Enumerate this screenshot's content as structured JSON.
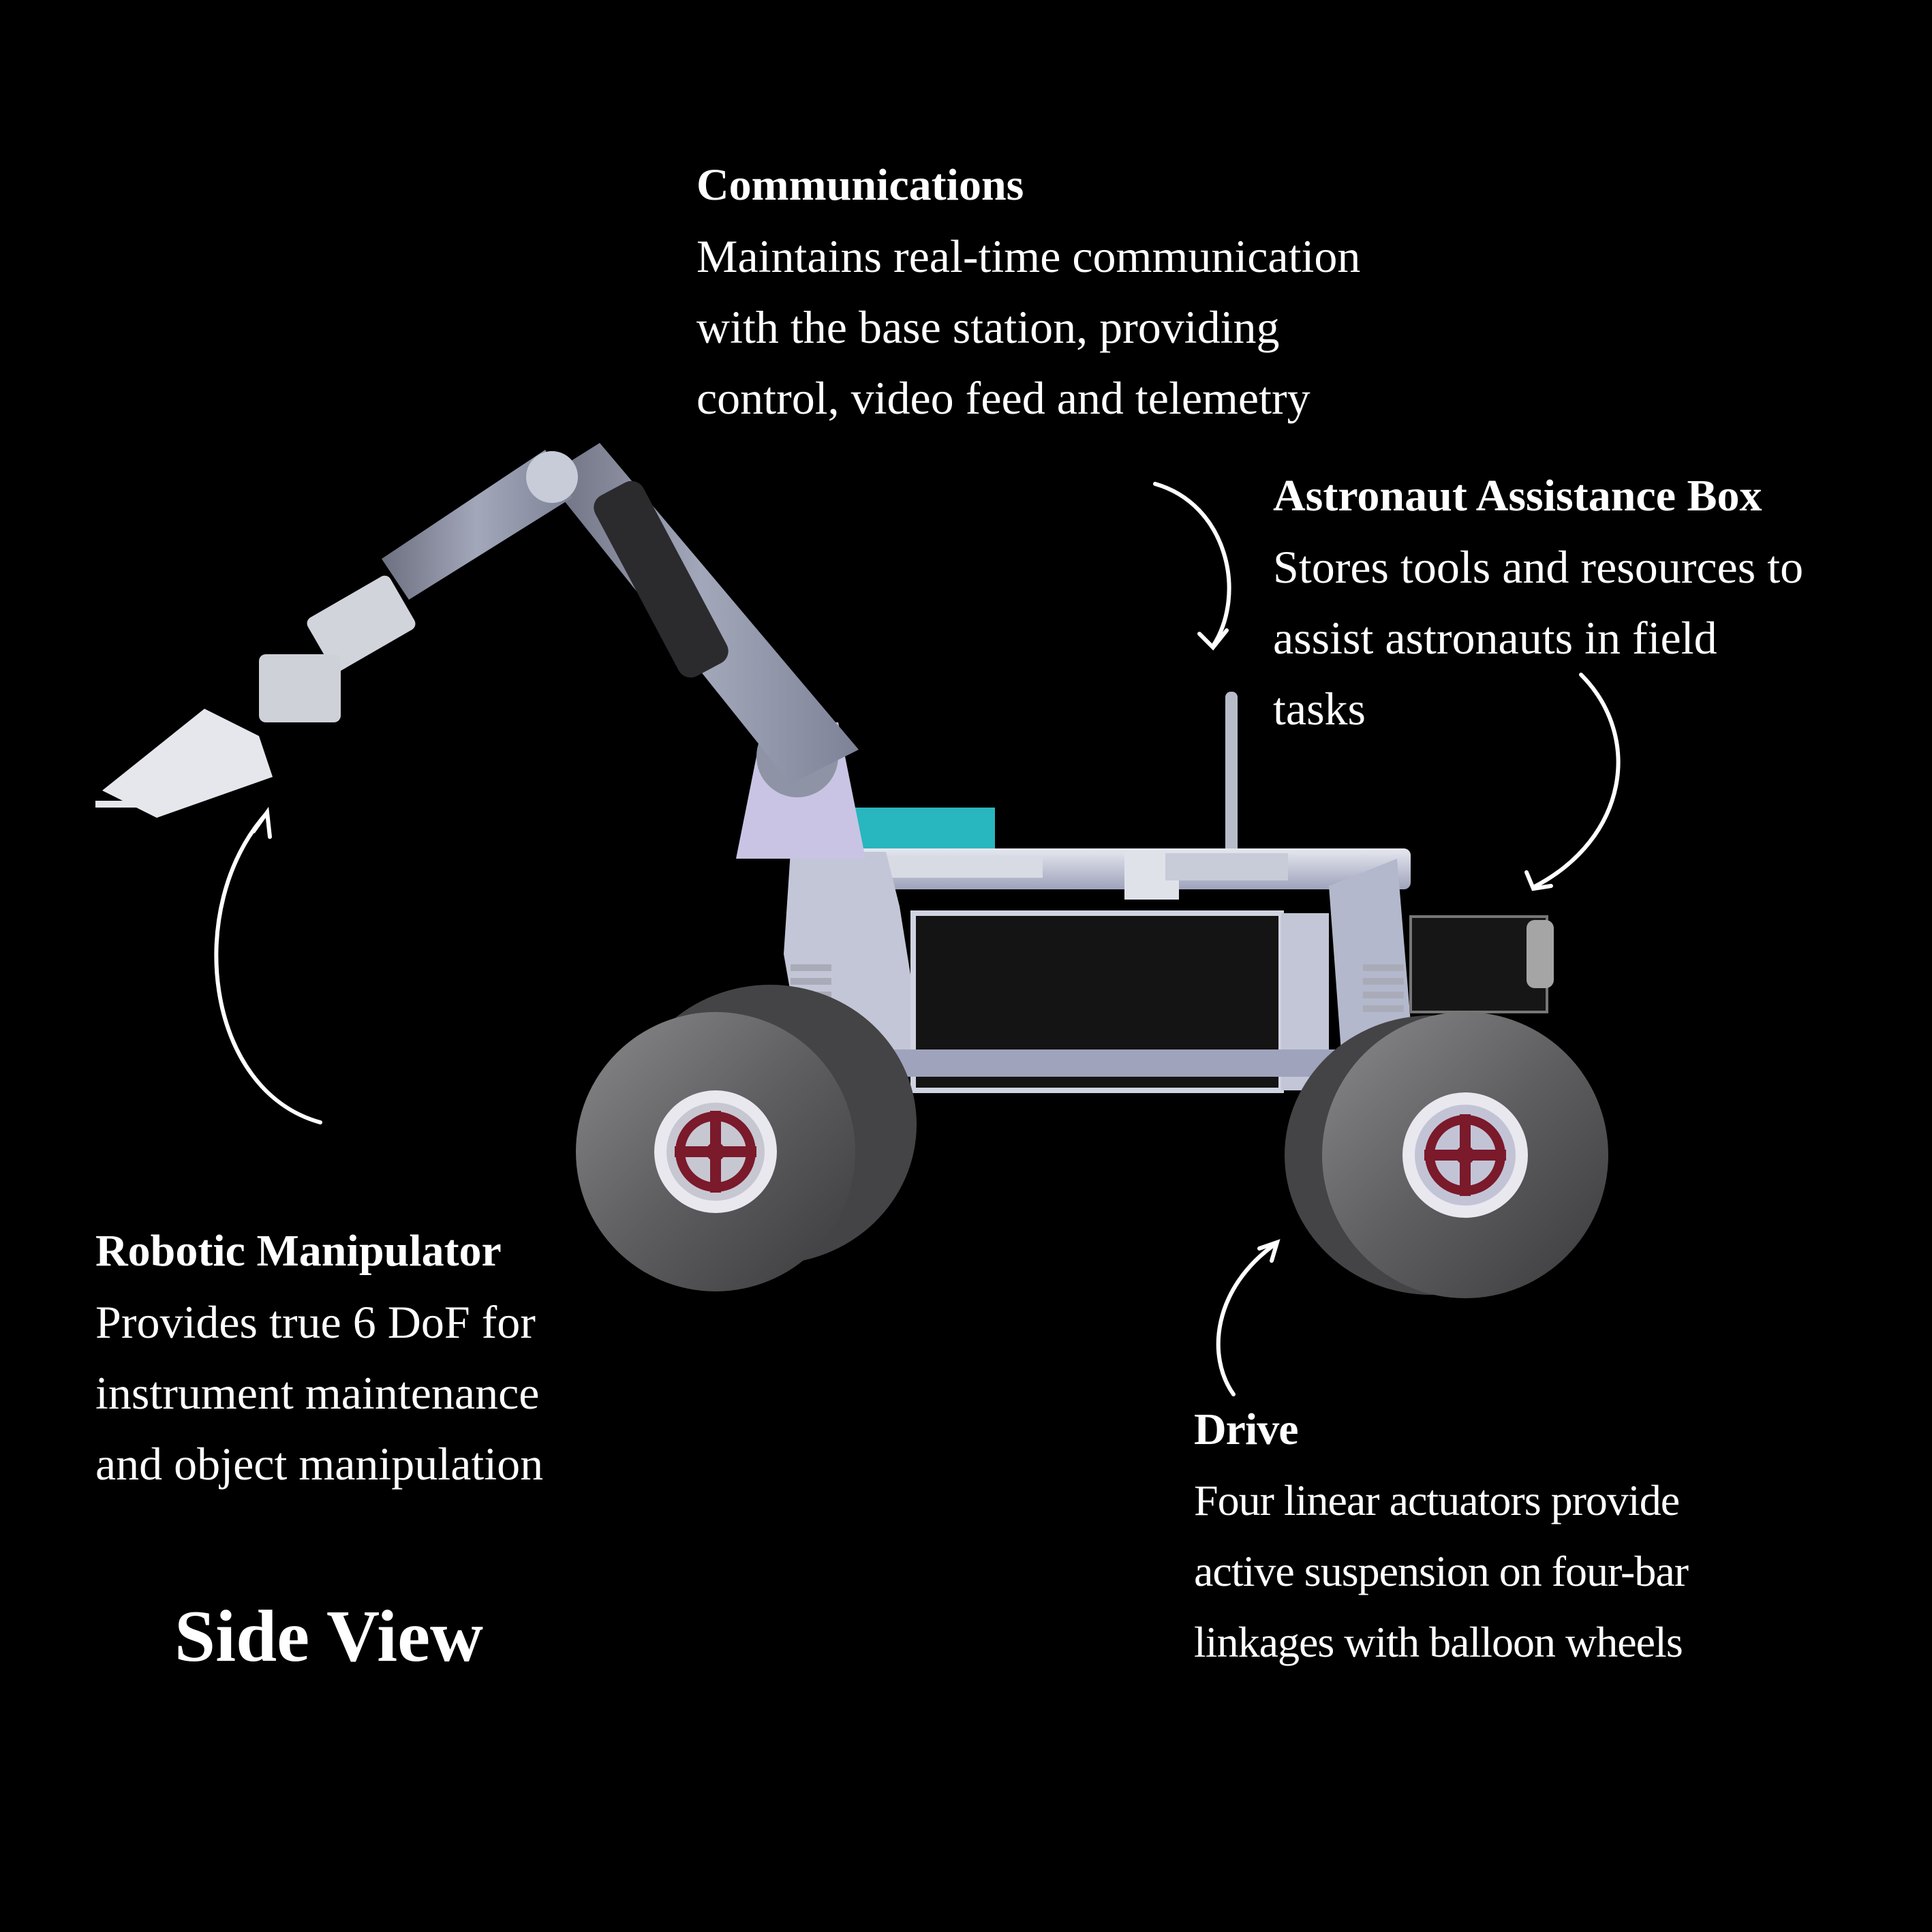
{
  "figure": {
    "view_label": "Side View",
    "background_color": "#000000",
    "text_color": "#ffffff",
    "callouts": {
      "communications": {
        "title": "Communications",
        "lines": [
          "Maintains real-time communication",
          "with the base station, providing",
          "control, video feed and telemetry"
        ]
      },
      "assistance_box": {
        "title": "Astronaut Assistance Box",
        "lines": [
          "Stores tools and resources to",
          "assist astronauts in field",
          "tasks"
        ]
      },
      "manipulator": {
        "title": "Robotic Manipulator",
        "lines": [
          "Provides true 6 DoF for",
          "instrument maintenance",
          "and object manipulation"
        ]
      },
      "drive": {
        "title": "Drive",
        "lines": [
          "Four linear actuators provide",
          "active suspension on four-bar",
          "linkages with balloon wheels"
        ]
      }
    },
    "colors": {
      "chassis_panel": "#141414",
      "frame_metal": "#b9bccb",
      "arm_metal": "#8f93a6",
      "tire": "#5e5e60",
      "hub_accent": "#7a1a2b",
      "cyan_accent": "#2fd6e0"
    }
  }
}
